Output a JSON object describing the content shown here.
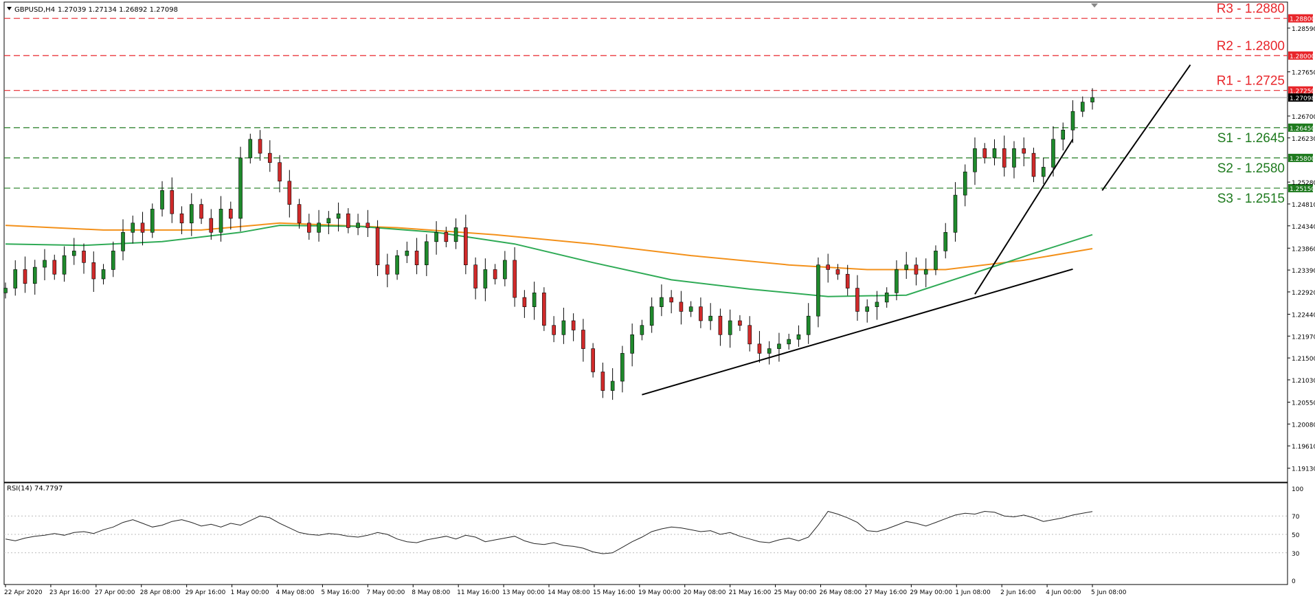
{
  "header": {
    "symbol": "GBPUSD,H4",
    "ohlc": "1.27039 1.27134 1.26892 1.27098"
  },
  "indicator": {
    "label": "RSI(14) 74.7797",
    "levels": [
      "100",
      "70",
      "50",
      "30",
      "0"
    ]
  },
  "colors": {
    "resistance": "#e8262b",
    "support": "#1e7a1e",
    "bull_candle": "#1f8a2c",
    "bear_candle": "#d02a2a",
    "ma_fast": "#2eaa55",
    "ma_slow": "#f39019",
    "trendline": "#000000",
    "current_price_tag": "#000000"
  },
  "chart_data": {
    "type": "candlestick",
    "symbol": "GBPUSD",
    "timeframe": "H4",
    "price_range": [
      1.1883,
      1.2915
    ],
    "price_ticks": [
      "1.28800",
      "1.28590",
      "1.28000",
      "1.27650",
      "1.27250",
      "1.27098",
      "1.26700",
      "1.26450",
      "1.26230",
      "1.25800",
      "1.25280",
      "1.25150",
      "1.24810",
      "1.24340",
      "1.23860",
      "1.23390",
      "1.22920",
      "1.22440",
      "1.21970",
      "1.21500",
      "1.21030",
      "1.20550",
      "1.20080",
      "1.19610",
      "1.19130"
    ],
    "time_labels": [
      "22 Apr 2020",
      "23 Apr 16:00",
      "27 Apr 00:00",
      "28 Apr 08:00",
      "29 Apr 16:00",
      "1 May 00:00",
      "4 May 08:00",
      "5 May 16:00",
      "7 May 00:00",
      "8 May 08:00",
      "11 May 16:00",
      "13 May 00:00",
      "14 May 08:00",
      "15 May 16:00",
      "19 May 00:00",
      "20 May 08:00",
      "21 May 16:00",
      "25 May 00:00",
      "26 May 08:00",
      "27 May 16:00",
      "29 May 00:00",
      "1 Jun 08:00",
      "2 Jun 16:00",
      "4 Jun 00:00",
      "5 Jun 08:00"
    ],
    "levels": [
      {
        "label": "R3 - 1.2880",
        "price": 1.288,
        "kind": "resistance"
      },
      {
        "label": "R2 - 1.2800",
        "price": 1.28,
        "kind": "resistance"
      },
      {
        "label": "R1 - 1.2725",
        "price": 1.2725,
        "kind": "resistance"
      },
      {
        "label": "S1 - 1.2645",
        "price": 1.2645,
        "kind": "support"
      },
      {
        "label": "S2 - 1.2580",
        "price": 1.258,
        "kind": "support"
      },
      {
        "label": "S3 - 1.2515",
        "price": 1.2515,
        "kind": "support"
      }
    ],
    "current_price": 1.27098,
    "close_path": [
      1.23,
      1.234,
      1.231,
      1.2345,
      1.236,
      1.233,
      1.237,
      1.238,
      1.2355,
      1.232,
      1.234,
      1.238,
      1.242,
      1.244,
      1.242,
      1.247,
      1.251,
      1.246,
      1.244,
      1.248,
      1.245,
      1.242,
      1.247,
      1.245,
      1.258,
      1.262,
      1.259,
      1.257,
      1.253,
      1.248,
      1.244,
      1.242,
      1.244,
      1.245,
      1.246,
      1.243,
      1.244,
      1.243,
      1.235,
      1.233,
      1.237,
      1.238,
      1.235,
      1.24,
      1.242,
      1.24,
      1.243,
      1.235,
      1.23,
      1.234,
      1.232,
      1.236,
      1.228,
      1.226,
      1.229,
      1.222,
      1.22,
      1.223,
      1.221,
      1.217,
      1.212,
      1.208,
      1.21,
      1.216,
      1.22,
      1.222,
      1.226,
      1.228,
      1.227,
      1.225,
      1.226,
      1.223,
      1.224,
      1.22,
      1.223,
      1.222,
      1.218,
      1.216,
      1.217,
      1.218,
      1.219,
      1.22,
      1.224,
      1.235,
      1.234,
      1.233,
      1.23,
      1.225,
      1.226,
      1.227,
      1.229,
      1.234,
      1.235,
      1.233,
      1.234,
      1.238,
      1.242,
      1.25,
      1.255,
      1.26,
      1.258,
      1.26,
      1.256,
      1.26,
      1.259,
      1.254,
      1.256,
      1.262,
      1.264,
      1.268,
      1.27,
      1.27098
    ],
    "ma_fast_points": [
      [
        0,
        1.2395
      ],
      [
        8,
        1.2392
      ],
      [
        16,
        1.24
      ],
      [
        24,
        1.242
      ],
      [
        28,
        1.2435
      ],
      [
        36,
        1.2433
      ],
      [
        44,
        1.242
      ],
      [
        52,
        1.2395
      ],
      [
        60,
        1.2355
      ],
      [
        68,
        1.2318
      ],
      [
        76,
        1.2298
      ],
      [
        84,
        1.2282
      ],
      [
        92,
        1.2285
      ],
      [
        100,
        1.234
      ],
      [
        105,
        1.2375
      ],
      [
        111,
        1.2415
      ]
    ],
    "ma_slow_points": [
      [
        0,
        1.2435
      ],
      [
        10,
        1.2425
      ],
      [
        20,
        1.2425
      ],
      [
        28,
        1.244
      ],
      [
        40,
        1.243
      ],
      [
        50,
        1.2415
      ],
      [
        60,
        1.2395
      ],
      [
        70,
        1.237
      ],
      [
        80,
        1.235
      ],
      [
        88,
        1.234
      ],
      [
        96,
        1.234
      ],
      [
        104,
        1.236
      ],
      [
        111,
        1.2385
      ]
    ],
    "trendlines": [
      {
        "from": [
          65,
          1.2071
        ],
        "to": [
          109,
          1.2341
        ]
      },
      {
        "from": [
          99,
          1.2287
        ],
        "to": [
          109,
          1.262
        ]
      },
      {
        "from": [
          112,
          1.251
        ],
        "to": [
          121,
          1.278
        ]
      }
    ],
    "rsi": {
      "ylim": [
        0,
        100
      ],
      "levels": [
        30,
        50,
        70
      ],
      "values": [
        45,
        43,
        46,
        48,
        49,
        51,
        49,
        52,
        53,
        51,
        55,
        58,
        63,
        66,
        62,
        58,
        60,
        64,
        66,
        63,
        59,
        61,
        58,
        62,
        60,
        65,
        70,
        68,
        62,
        57,
        52,
        50,
        49,
        51,
        50,
        48,
        47,
        49,
        52,
        50,
        45,
        42,
        41,
        44,
        46,
        48,
        45,
        49,
        47,
        42,
        44,
        46,
        48,
        43,
        40,
        39,
        41,
        38,
        37,
        35,
        31,
        29,
        30,
        36,
        42,
        47,
        53,
        56,
        58,
        57,
        55,
        53,
        54,
        50,
        52,
        48,
        45,
        42,
        41,
        44,
        46,
        43,
        47,
        60,
        75,
        72,
        68,
        63,
        54,
        53,
        56,
        60,
        64,
        62,
        59,
        63,
        67,
        71,
        73,
        72,
        75,
        74,
        70,
        69,
        71,
        68,
        64,
        66,
        68,
        71,
        73,
        74.78
      ]
    }
  }
}
